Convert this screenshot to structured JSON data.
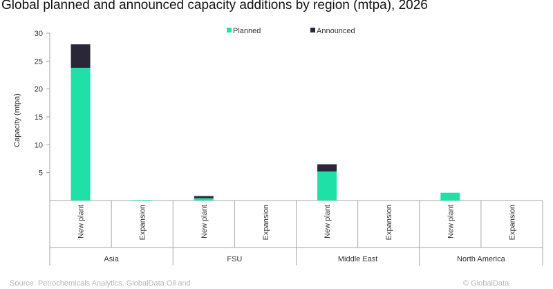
{
  "title": "Global planned and announced capacity additions by region (mtpa), 2026",
  "footer": {
    "source": "Source: Petrochemicals Analytics, GlobalData Oil and",
    "copyright": "© GlobalData"
  },
  "colors": {
    "planned": "#1fe0a6",
    "announced": "#2a2838",
    "axis": "#a6a6a6"
  },
  "chart_data": {
    "type": "bar",
    "stacked": true,
    "ylabel": "Capacity (mtpa)",
    "ylim": [
      0,
      30
    ],
    "yticks": [
      5,
      10,
      15,
      20,
      25,
      30
    ],
    "grid": false,
    "legend_position": "top",
    "groups": [
      "Asia",
      "FSU",
      "Middle East",
      "North America"
    ],
    "categories": [
      "New plant",
      "Expansion",
      "New plant",
      "Expansion",
      "New plant",
      "Expansion",
      "New plant",
      "Expansion"
    ],
    "series": [
      {
        "name": "Planned",
        "values": [
          23.8,
          0.1,
          0.4,
          0,
          5.2,
          0,
          1.4,
          0
        ]
      },
      {
        "name": "Announced",
        "values": [
          4.2,
          0,
          0.4,
          0,
          1.3,
          0,
          0,
          0
        ]
      }
    ]
  }
}
